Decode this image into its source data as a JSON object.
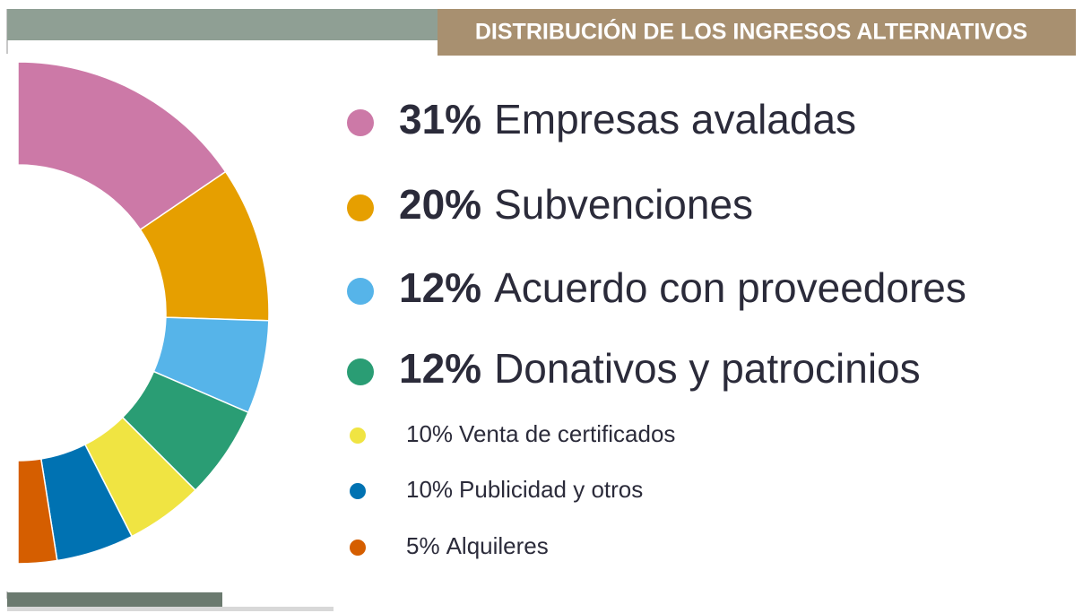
{
  "chart_data": {
    "type": "donut",
    "title": "DISTRIBUCIÓN DE LOS INGRESOS ALTERNATIVOS",
    "categories": [
      "Empresas avaladas",
      "Subvenciones",
      "Acuerdo con proveedores",
      "Donativos y patrocinios",
      "Venta de certificados",
      "Publicidad y otros",
      "Alquileres"
    ],
    "values": [
      31,
      20,
      12,
      12,
      10,
      10,
      5
    ],
    "value_labels": [
      "31%",
      "20%",
      "12%",
      "12%",
      "10%",
      "10%",
      "5%"
    ],
    "colors": [
      "#cc79a7",
      "#e69f00",
      "#56b4e9",
      "#2a9d74",
      "#f0e442",
      "#0072b2",
      "#d55e00"
    ]
  }
}
